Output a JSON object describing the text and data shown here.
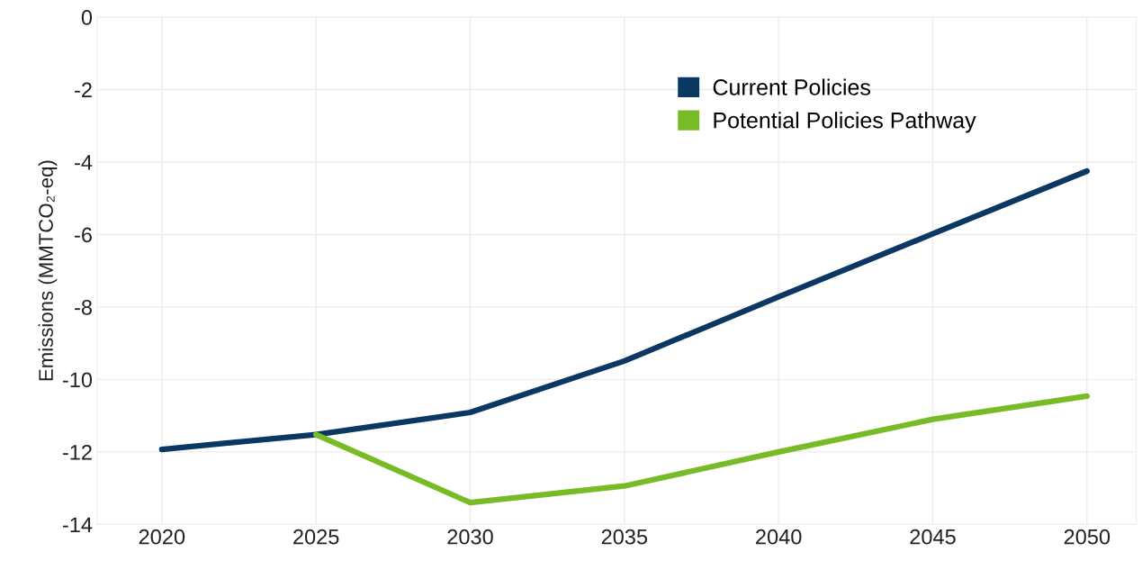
{
  "chart_data": {
    "type": "line",
    "ylabel": "Emissions (MMTCO₂-eq)",
    "x": [
      2020,
      2025,
      2030,
      2035,
      2040,
      2045,
      2050
    ],
    "series": [
      {
        "name": "Current Policies",
        "color": "#0b3763",
        "values": [
          -11.93,
          -11.52,
          -10.91,
          -9.49,
          -7.72,
          -5.98,
          -4.25
        ]
      },
      {
        "name": "Potential Policies Pathway",
        "color": "#77bc26",
        "x": [
          2025,
          2030,
          2035,
          2040,
          2045,
          2050
        ],
        "values": [
          -11.52,
          -13.4,
          -12.94,
          -12.0,
          -11.1,
          -10.46
        ]
      }
    ],
    "xlim": [
      2017.9,
      2051.6
    ],
    "xticks": [
      2020,
      2025,
      2030,
      2035,
      2040,
      2045,
      2050
    ],
    "ylim": [
      -14,
      0
    ],
    "yticks": [
      0,
      -2,
      -4,
      -6,
      -8,
      -10,
      -12,
      -14
    ],
    "grid": true,
    "legend": "top right",
    "marker": "none",
    "line_style": "solid"
  }
}
